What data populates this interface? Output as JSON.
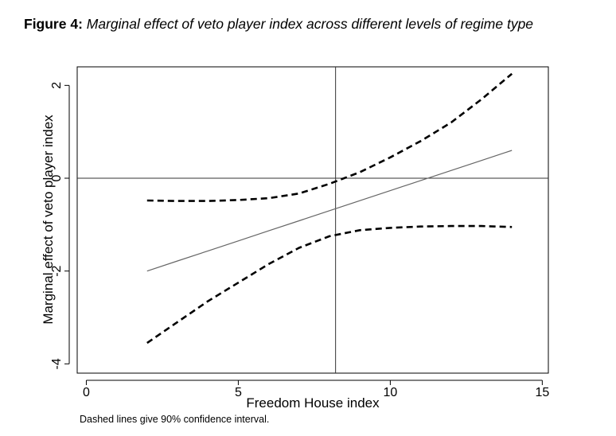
{
  "figure": {
    "label": "Figure 4:",
    "title": "Marginal effect of veto player index across different levels of regime type",
    "footnote": "Dashed lines give 90% confidence interval."
  },
  "chart_data": {
    "type": "line",
    "xlabel": "Freedom House index",
    "ylabel": "Marginal effect of veto player index",
    "xlim": [
      -0.3,
      15.2
    ],
    "ylim": [
      -4.2,
      2.4
    ],
    "xticks": [
      0,
      5,
      10,
      15
    ],
    "yticks": [
      -4,
      -2,
      0,
      2
    ],
    "reference_lines": {
      "y": 0,
      "x": 8.2
    },
    "x": [
      2,
      3,
      4,
      5,
      6,
      7,
      8,
      9,
      10,
      11,
      12,
      13,
      14
    ],
    "series": [
      {
        "role": "estimate",
        "style": "solid",
        "color": "#666666",
        "values": [
          -2.0,
          -1.783,
          -1.567,
          -1.35,
          -1.133,
          -0.917,
          -0.7,
          -0.483,
          -0.267,
          -0.05,
          0.167,
          0.383,
          0.6
        ]
      },
      {
        "role": "upper_bound",
        "style": "dashed",
        "color": "#000000",
        "values": [
          -0.48,
          -0.49,
          -0.49,
          -0.47,
          -0.43,
          -0.33,
          -0.12,
          0.13,
          0.45,
          0.8,
          1.2,
          1.7,
          2.25
        ]
      },
      {
        "role": "lower_bound",
        "style": "dashed",
        "color": "#000000",
        "values": [
          -3.55,
          -3.1,
          -2.65,
          -2.25,
          -1.85,
          -1.5,
          -1.25,
          -1.12,
          -1.07,
          -1.04,
          -1.03,
          -1.03,
          -1.05
        ]
      }
    ]
  }
}
